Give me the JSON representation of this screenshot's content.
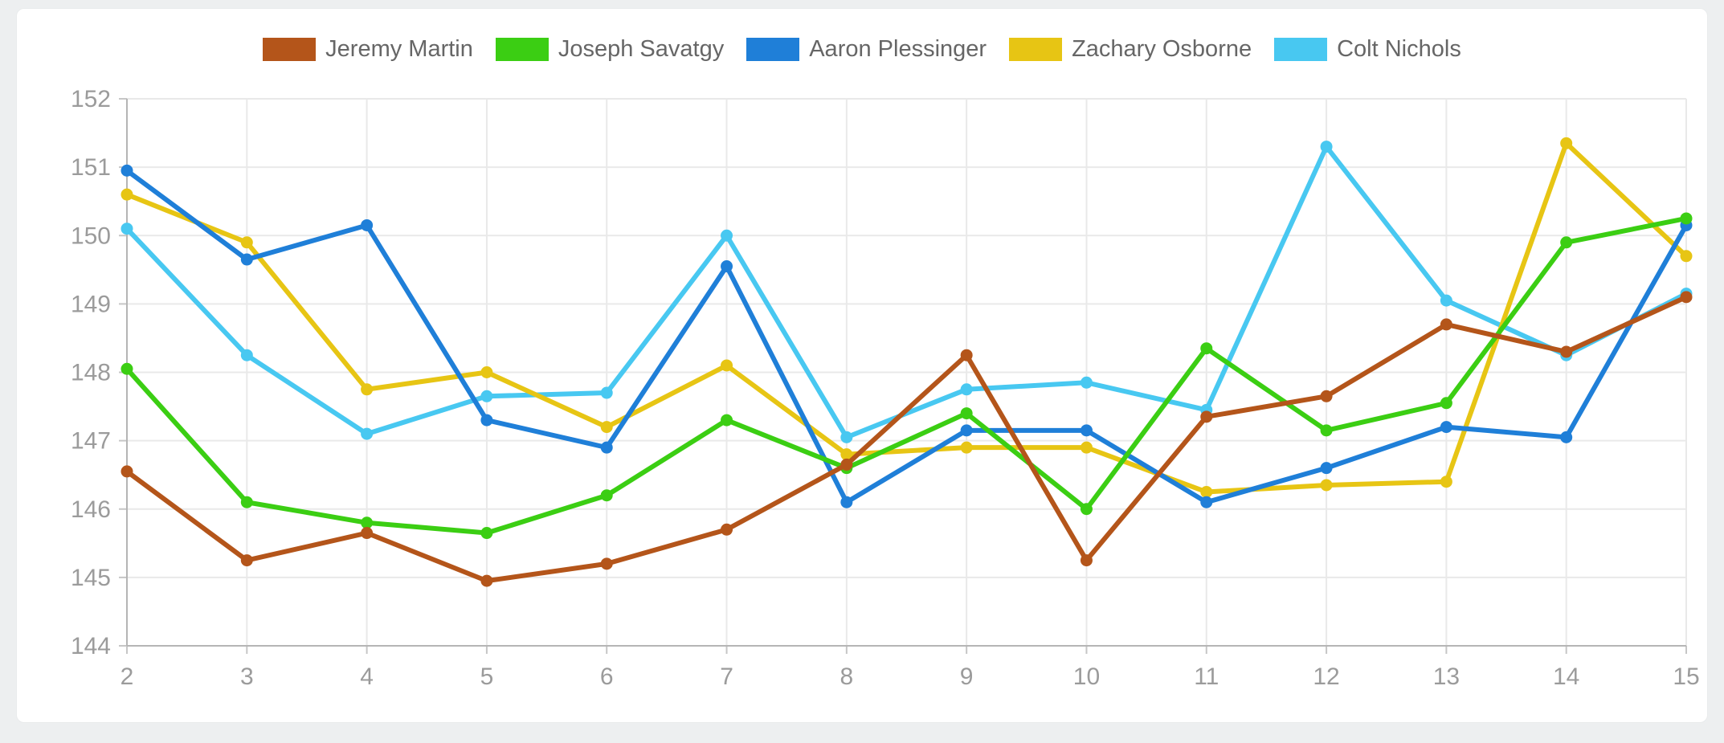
{
  "page": {
    "background_color": "#edeff0",
    "card_background": "#ffffff"
  },
  "legend": {
    "position": "top",
    "items": [
      {
        "label": "Jeremy Martin",
        "color": "#B4551A"
      },
      {
        "label": "Joseph Savatgy",
        "color": "#3BCE13"
      },
      {
        "label": "Aaron Plessinger",
        "color": "#1F7FD8"
      },
      {
        "label": "Zachary Osborne",
        "color": "#E7C514"
      },
      {
        "label": "Colt Nichols",
        "color": "#48C8F1"
      }
    ]
  },
  "chart_data": {
    "type": "line",
    "title": "",
    "xlabel": "",
    "ylabel": "",
    "x": [
      2,
      3,
      4,
      5,
      6,
      7,
      8,
      9,
      10,
      11,
      12,
      13,
      14,
      15
    ],
    "x_tick_labels": [
      "2",
      "3",
      "4",
      "5",
      "6",
      "7",
      "8",
      "9",
      "10",
      "11",
      "12",
      "13",
      "14",
      "15"
    ],
    "y_tick_labels": [
      "144",
      "145",
      "146",
      "147",
      "148",
      "149",
      "150",
      "151",
      "152"
    ],
    "ylim": [
      144,
      152
    ],
    "ytick_step": 1,
    "grid": true,
    "legend_position": "top",
    "gridline_color": "#e9e9e9",
    "axis_line_color": "#b5b5b5",
    "tick_color": "#c6c6c6",
    "tick_label_color": "#9b9b9b",
    "series": [
      {
        "name": "Jeremy Martin",
        "color": "#B4551A",
        "values": [
          146.55,
          145.25,
          145.65,
          144.95,
          145.2,
          145.7,
          146.65,
          148.25,
          145.25,
          147.35,
          147.65,
          148.7,
          148.3,
          149.1
        ]
      },
      {
        "name": "Joseph Savatgy",
        "color": "#3BCE13",
        "values": [
          148.05,
          146.1,
          145.8,
          145.65,
          146.2,
          147.3,
          146.6,
          147.4,
          146.0,
          148.35,
          147.15,
          147.55,
          149.9,
          150.25
        ]
      },
      {
        "name": "Aaron Plessinger",
        "color": "#1F7FD8",
        "values": [
          150.95,
          149.65,
          150.15,
          147.3,
          146.9,
          149.55,
          146.1,
          147.15,
          147.15,
          146.1,
          146.6,
          147.2,
          147.05,
          150.15
        ]
      },
      {
        "name": "Zachary Osborne",
        "color": "#E7C514",
        "values": [
          150.6,
          149.9,
          147.75,
          148.0,
          147.2,
          148.1,
          146.8,
          146.9,
          146.9,
          146.25,
          146.35,
          146.4,
          151.35,
          149.7
        ]
      },
      {
        "name": "Colt Nichols",
        "color": "#48C8F1",
        "values": [
          150.1,
          148.25,
          147.1,
          147.65,
          147.7,
          150.0,
          147.05,
          147.75,
          147.85,
          147.45,
          151.3,
          149.05,
          148.25,
          149.15
        ]
      }
    ]
  }
}
